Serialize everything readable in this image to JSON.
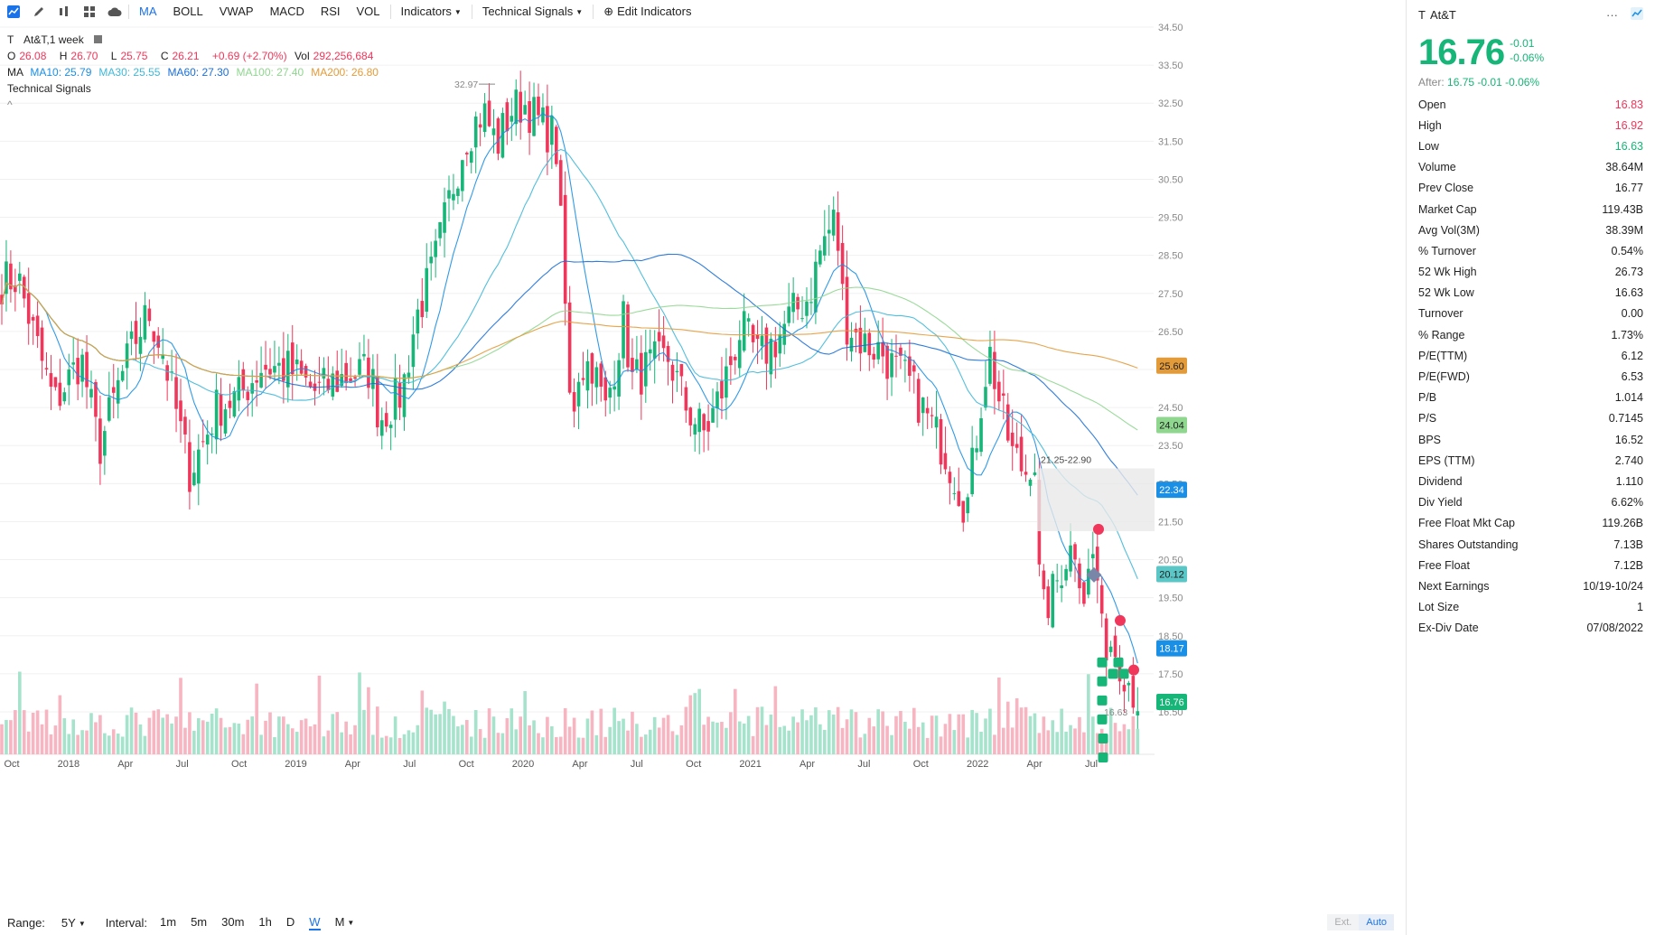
{
  "toolbar": {
    "items": [
      "MA",
      "BOLL",
      "VWAP",
      "MACD",
      "RSI",
      "VOL"
    ],
    "active": "MA",
    "indicators_label": "Indicators",
    "signals_label": "Technical Signals",
    "edit_label": "Edit Indicators"
  },
  "legend": {
    "symbol": "T",
    "title": "At&T,1 week",
    "ohlc": {
      "o_label": "O",
      "o": "26.08",
      "h_label": "H",
      "h": "26.70",
      "l_label": "L",
      "l": "25.75",
      "c_label": "C",
      "c": "26.21",
      "chg": "+0.69 (+2.70%)",
      "vol_label": "Vol",
      "vol": "292,256,684"
    },
    "ma_label": "MA",
    "ma": [
      {
        "text": "MA10: 25.79",
        "color": "#1a8fe6"
      },
      {
        "text": "MA30: 25.55",
        "color": "#3fb8d8"
      },
      {
        "text": "MA60: 27.30",
        "color": "#1a6fd8"
      },
      {
        "text": "MA100: 27.40",
        "color": "#8fd68f"
      },
      {
        "text": "MA200: 26.80",
        "color": "#e39b3a"
      }
    ],
    "signals_label": "Technical Signals",
    "collapse": "^"
  },
  "chart_data": {
    "type": "candlestick",
    "y_ticks": [
      "34.50",
      "33.50",
      "32.50",
      "31.50",
      "30.50",
      "29.50",
      "28.50",
      "27.50",
      "26.50",
      "25.50",
      "24.50",
      "23.50",
      "22.50",
      "21.50",
      "20.50",
      "19.50",
      "18.50",
      "17.50",
      "16.50"
    ],
    "ylim": [
      16.5,
      34.5
    ],
    "x_ticks": [
      "Oct",
      "2018",
      "Apr",
      "Jul",
      "Oct",
      "2019",
      "Apr",
      "Jul",
      "Oct",
      "2020",
      "Apr",
      "Jul",
      "Oct",
      "2021",
      "Apr",
      "Jul",
      "Oct",
      "2022",
      "Apr",
      "Jul"
    ],
    "max_marker": "32.97",
    "min_marker": "16.63",
    "range_box_label": "21.25-22.90",
    "price_tags": [
      {
        "value": "25.60",
        "color": "#e39b3a",
        "text_color": "#222"
      },
      {
        "value": "24.04",
        "color": "#8fd68f",
        "text_color": "#222"
      },
      {
        "value": "22.34",
        "color": "#1a8fe6",
        "text_color": "#fff"
      },
      {
        "value": "20.12",
        "color": "#5bc6c6",
        "text_color": "#222"
      },
      {
        "value": "18.17",
        "color": "#1a8fe6",
        "text_color": "#fff"
      },
      {
        "value": "16.76",
        "color": "#16b578",
        "text_color": "#fff"
      }
    ],
    "up_color": "#16b578",
    "down_color": "#f0365a"
  },
  "bottom": {
    "range_label": "Range:",
    "range_value": "5Y",
    "interval_label": "Interval:",
    "intervals": [
      "1m",
      "5m",
      "30m",
      "1h",
      "D",
      "W",
      "M"
    ],
    "active_interval": "W",
    "ext": "Ext.",
    "auto": "Auto"
  },
  "side": {
    "symbol": "T",
    "name": "At&T",
    "more": "···",
    "price": "16.76",
    "chg": "-0.01",
    "chg_pct": "-0.06%",
    "after_label": "After:",
    "after": "16.75 -0.01 -0.06%",
    "stats": [
      {
        "k": "Open",
        "v": "16.83",
        "c": "red"
      },
      {
        "k": "High",
        "v": "16.92",
        "c": "red"
      },
      {
        "k": "Low",
        "v": "16.63",
        "c": "grn"
      },
      {
        "k": "Volume",
        "v": "38.64M",
        "c": ""
      },
      {
        "k": "Prev Close",
        "v": "16.77",
        "c": ""
      },
      {
        "k": "Market Cap",
        "v": "119.43B",
        "c": ""
      },
      {
        "k": "Avg Vol(3M)",
        "v": "38.39M",
        "c": ""
      },
      {
        "k": "% Turnover",
        "v": "0.54%",
        "c": ""
      },
      {
        "k": "52 Wk High",
        "v": "26.73",
        "c": ""
      },
      {
        "k": "52 Wk Low",
        "v": "16.63",
        "c": ""
      },
      {
        "k": "Turnover",
        "v": "0.00",
        "c": ""
      },
      {
        "k": "% Range",
        "v": "1.73%",
        "c": ""
      },
      {
        "k": "P/E(TTM)",
        "v": "6.12",
        "c": ""
      },
      {
        "k": "P/E(FWD)",
        "v": "6.53",
        "c": ""
      },
      {
        "k": "P/B",
        "v": "1.014",
        "c": ""
      },
      {
        "k": "P/S",
        "v": "0.7145",
        "c": ""
      },
      {
        "k": "BPS",
        "v": "16.52",
        "c": ""
      },
      {
        "k": "EPS (TTM)",
        "v": "2.740",
        "c": ""
      },
      {
        "k": "Dividend",
        "v": "1.110",
        "c": ""
      },
      {
        "k": "Div Yield",
        "v": "6.62%",
        "c": ""
      },
      {
        "k": "Free Float Mkt Cap",
        "v": "119.26B",
        "c": ""
      },
      {
        "k": "Shares Outstanding",
        "v": "7.13B",
        "c": ""
      },
      {
        "k": "Free Float",
        "v": "7.12B",
        "c": ""
      },
      {
        "k": "Next Earnings",
        "v": "10/19-10/24",
        "c": ""
      },
      {
        "k": "Lot Size",
        "v": "1",
        "c": ""
      },
      {
        "k": "Ex-Div Date",
        "v": "07/08/2022",
        "c": ""
      }
    ]
  }
}
